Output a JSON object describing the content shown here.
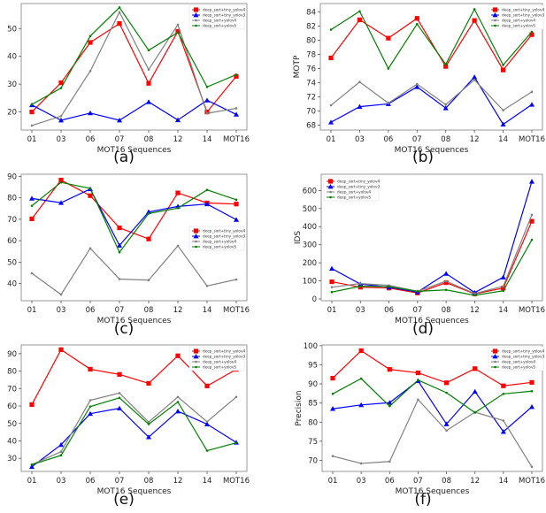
{
  "figure": {
    "legend_entries": [
      {
        "name": "deep_sort+tiny_yolov4",
        "color": "#ff0000",
        "marker": "square"
      },
      {
        "name": "deep_sort+tiny_yolov3",
        "color": "#0000ff",
        "marker": "triangle"
      },
      {
        "name": "deep_sort+yolov4",
        "color": "#808080",
        "marker": "star"
      },
      {
        "name": "deep_sort+yolov5",
        "color": "#008000",
        "marker": "star"
      }
    ]
  },
  "chart_data": [
    {
      "type": "line",
      "panel_label": "(a)",
      "title": "",
      "xlabel": "MOT16 Sequences",
      "ylabel": "MOTA",
      "categories": [
        "01",
        "03",
        "06",
        "07",
        "08",
        "12",
        "14",
        "MOT16"
      ],
      "ylim": [
        13.5,
        59
      ],
      "yticks": [
        20,
        30,
        40,
        50
      ],
      "legend_position": "top-right",
      "grid": false,
      "series": [
        {
          "name": "deep_sort+tiny_yolov4",
          "values": [
            20.0,
            30.5,
            45.0,
            51.8,
            30.3,
            49.0,
            20.0,
            32.8
          ]
        },
        {
          "name": "deep_sort+tiny_yolov3",
          "values": [
            22.5,
            17.0,
            19.6,
            17.0,
            23.6,
            17.1,
            24.2,
            19.1
          ]
        },
        {
          "name": "deep_sort+yolov4",
          "values": [
            15.1,
            18.5,
            34.7,
            55.9,
            35.2,
            51.4,
            19.5,
            21.3
          ]
        },
        {
          "name": "deep_sort+yolov5",
          "values": [
            22.7,
            28.6,
            47.3,
            57.6,
            42.2,
            48.6,
            29.0,
            33.4
          ]
        }
      ]
    },
    {
      "type": "line",
      "panel_label": "(b)",
      "title": "",
      "xlabel": "MOT16 Sequences",
      "ylabel": "MOTP",
      "categories": [
        "01",
        "03",
        "06",
        "07",
        "08",
        "12",
        "14",
        "MOT16"
      ],
      "ylim": [
        67.3,
        85.2
      ],
      "yticks": [
        68,
        70,
        72,
        74,
        76,
        78,
        80,
        82,
        84
      ],
      "legend_position": "top-right",
      "grid": false,
      "series": [
        {
          "name": "deep_sort+tiny_yolov4",
          "values": [
            77.5,
            82.9,
            80.3,
            83.1,
            76.3,
            82.8,
            75.8,
            80.8
          ]
        },
        {
          "name": "deep_sort+tiny_yolov3",
          "values": [
            68.4,
            70.6,
            71.0,
            73.4,
            70.4,
            74.8,
            68.1,
            70.9
          ]
        },
        {
          "name": "deep_sort+yolov4",
          "values": [
            70.8,
            74.1,
            71.1,
            73.8,
            70.9,
            74.4,
            70.1,
            72.7
          ]
        },
        {
          "name": "deep_sort+yolov5",
          "values": [
            81.5,
            84.1,
            76.0,
            82.3,
            76.6,
            84.4,
            76.5,
            81.2
          ]
        }
      ]
    },
    {
      "type": "line",
      "panel_label": "(c)",
      "title": "",
      "xlabel": "MOT16 Sequences",
      "ylabel": "IDF1",
      "categories": [
        "01",
        "03",
        "06",
        "07",
        "08",
        "12",
        "14",
        "MOT16"
      ],
      "ylim": [
        32,
        91
      ],
      "yticks": [
        40,
        50,
        60,
        70,
        80,
        90
      ],
      "legend_position": "center-right",
      "grid": false,
      "series": [
        {
          "name": "deep_sort+tiny_yolov4",
          "values": [
            70.2,
            88.3,
            81.0,
            66.0,
            60.8,
            82.3,
            77.6,
            77.1
          ]
        },
        {
          "name": "deep_sort+tiny_yolov3",
          "values": [
            79.7,
            77.7,
            84.1,
            57.8,
            73.4,
            76.0,
            77.1,
            69.8
          ]
        },
        {
          "name": "deep_sort+yolov4",
          "values": [
            44.8,
            34.9,
            56.4,
            42.1,
            41.6,
            57.6,
            38.9,
            41.9
          ]
        },
        {
          "name": "deep_sort+yolov5",
          "values": [
            76.3,
            87.2,
            84.4,
            54.6,
            72.7,
            75.2,
            83.7,
            79.1
          ]
        }
      ]
    },
    {
      "type": "line",
      "panel_label": "(d)",
      "title": "",
      "xlabel": "MOT16 Sequences",
      "ylabel": "IDS",
      "categories": [
        "01",
        "03",
        "06",
        "07",
        "08",
        "12",
        "14",
        "MOT16"
      ],
      "ylim": [
        -10,
        690
      ],
      "yticks": [
        0,
        100,
        200,
        300,
        400,
        500,
        600
      ],
      "legend_position": "top-left",
      "grid": false,
      "series": [
        {
          "name": "deep_sort+tiny_yolov4",
          "values": [
            95,
            65,
            60,
            33,
            90,
            28,
            60,
            430
          ]
        },
        {
          "name": "deep_sort+tiny_yolov3",
          "values": [
            168,
            82,
            65,
            38,
            140,
            35,
            120,
            650
          ]
        },
        {
          "name": "deep_sort+yolov4",
          "values": [
            65,
            85,
            75,
            42,
            98,
            30,
            70,
            465
          ]
        },
        {
          "name": "deep_sort+yolov5",
          "values": [
            38,
            70,
            68,
            42,
            50,
            20,
            45,
            327
          ]
        }
      ]
    },
    {
      "type": "line",
      "panel_label": "(e)",
      "title": "",
      "xlabel": "MOT16 Sequences",
      "ylabel": "Recall",
      "categories": [
        "01",
        "03",
        "06",
        "07",
        "08",
        "12",
        "14",
        "MOT16"
      ],
      "ylim": [
        22.5,
        95
      ],
      "yticks": [
        30,
        40,
        50,
        60,
        70,
        80,
        90
      ],
      "legend_position": "top-right",
      "grid": false,
      "series": [
        {
          "name": "deep_sort+tiny_yolov4",
          "values": [
            60.8,
            92.3,
            81.1,
            78.1,
            73.0,
            88.8,
            71.5,
            81.0
          ]
        },
        {
          "name": "deep_sort+tiny_yolov3",
          "values": [
            25.2,
            37.8,
            55.6,
            58.7,
            42.2,
            57.0,
            49.6,
            39.1
          ]
        },
        {
          "name": "deep_sort+yolov4",
          "values": [
            26.4,
            33.8,
            63.3,
            67.4,
            50.8,
            65.2,
            51.0,
            65.2
          ]
        },
        {
          "name": "deep_sort+yolov5",
          "values": [
            26.4,
            31.7,
            59.7,
            64.7,
            49.6,
            62.3,
            34.4,
            38.9
          ]
        }
      ]
    },
    {
      "type": "line",
      "panel_label": "(f)",
      "title": "",
      "xlabel": "MOT16 Sequences",
      "ylabel": "Precision",
      "categories": [
        "01",
        "03",
        "06",
        "07",
        "08",
        "12",
        "14",
        "MOT16"
      ],
      "ylim": [
        67.1,
        100.2
      ],
      "yticks": [
        70,
        75,
        80,
        85,
        90,
        95,
        100
      ],
      "legend_position": "top-right",
      "grid": false,
      "series": [
        {
          "name": "deep_sort+tiny_yolov4",
          "values": [
            91.5,
            98.7,
            93.8,
            92.9,
            90.3,
            94.0,
            89.5,
            90.4
          ]
        },
        {
          "name": "deep_sort+tiny_yolov3",
          "values": [
            83.5,
            84.5,
            85.1,
            90.8,
            79.5,
            88.0,
            77.5,
            84.0
          ]
        },
        {
          "name": "deep_sort+yolov4",
          "values": [
            71.1,
            69.2,
            69.7,
            85.9,
            77.8,
            82.6,
            80.4,
            68.3
          ]
        },
        {
          "name": "deep_sort+yolov5",
          "values": [
            87.4,
            91.4,
            84.2,
            91.0,
            87.7,
            82.5,
            87.4,
            88.1
          ]
        }
      ]
    }
  ]
}
